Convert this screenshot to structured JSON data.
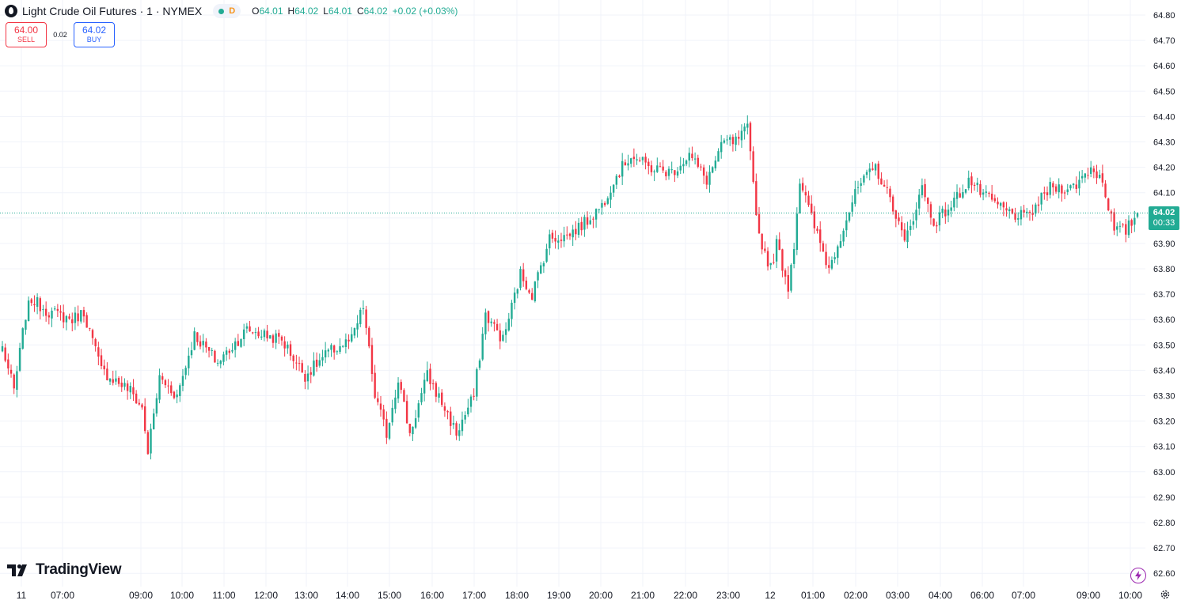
{
  "header": {
    "symbol_title": "Light Crude Oil Futures · 1 · NYMEX",
    "status_letter": "D",
    "ohlc": {
      "o_label": "O",
      "o": "64.01",
      "h_label": "H",
      "h": "64.02",
      "l_label": "L",
      "l": "64.01",
      "c_label": "C",
      "c": "64.02",
      "change": "+0.02 (+0.03%)"
    }
  },
  "trade": {
    "sell_price": "64.00",
    "sell_label": "SELL",
    "spread": "0.02",
    "buy_price": "64.02",
    "buy_label": "BUY"
  },
  "last_price": {
    "value": "64.02",
    "countdown": "00:33"
  },
  "branding": {
    "logo_text": "TradingView"
  },
  "icons": [
    "symbol-logo-icon",
    "market-status-icon",
    "tradingview-logo-icon",
    "lightning-icon",
    "settings-gear-icon"
  ],
  "colors": {
    "up": "#22ab94",
    "down": "#f23645",
    "grid": "#f0f3fa",
    "axis_text": "#131722",
    "last_line": "#22ab94"
  },
  "chart_data": {
    "type": "candlestick",
    "title": "Light Crude Oil Futures · 1 · NYMEX",
    "ylim": [
      62.57,
      64.87
    ],
    "y_ticks": [
      "64.80",
      "64.70",
      "64.60",
      "64.50",
      "64.40",
      "64.30",
      "64.20",
      "64.10",
      "64.00",
      "63.90",
      "63.80",
      "63.70",
      "63.60",
      "63.50",
      "63.40",
      "63.30",
      "63.20",
      "63.10",
      "63.00",
      "62.90",
      "62.80",
      "62.70",
      "62.60"
    ],
    "x_ticks": [
      "11",
      "07:00",
      "09:00",
      "10:00",
      "11:00",
      "12:00",
      "13:00",
      "14:00",
      "15:00",
      "16:00",
      "17:00",
      "18:00",
      "19:00",
      "20:00",
      "21:00",
      "22:00",
      "23:00",
      "12",
      "01:00",
      "02:00",
      "03:00",
      "04:00",
      "06:00",
      "07:00",
      "09:00",
      "10:00"
    ],
    "last_price": 64.02,
    "anchors": [
      {
        "i": 0,
        "v": 63.49
      },
      {
        "i": 4,
        "v": 63.32
      },
      {
        "i": 8,
        "v": 63.62
      },
      {
        "i": 10,
        "v": 63.68
      },
      {
        "i": 16,
        "v": 63.63
      },
      {
        "i": 24,
        "v": 63.6
      },
      {
        "i": 28,
        "v": 63.63
      },
      {
        "i": 34,
        "v": 63.4
      },
      {
        "i": 44,
        "v": 63.32
      },
      {
        "i": 48,
        "v": 63.25
      },
      {
        "i": 50,
        "v": 63.08
      },
      {
        "i": 54,
        "v": 63.37
      },
      {
        "i": 60,
        "v": 63.3
      },
      {
        "i": 66,
        "v": 63.54
      },
      {
        "i": 74,
        "v": 63.43
      },
      {
        "i": 84,
        "v": 63.56
      },
      {
        "i": 96,
        "v": 63.52
      },
      {
        "i": 104,
        "v": 63.38
      },
      {
        "i": 112,
        "v": 63.47
      },
      {
        "i": 120,
        "v": 63.52
      },
      {
        "i": 124,
        "v": 63.65
      },
      {
        "i": 128,
        "v": 63.3
      },
      {
        "i": 132,
        "v": 63.15
      },
      {
        "i": 136,
        "v": 63.37
      },
      {
        "i": 140,
        "v": 63.15
      },
      {
        "i": 146,
        "v": 63.38
      },
      {
        "i": 152,
        "v": 63.25
      },
      {
        "i": 156,
        "v": 63.15
      },
      {
        "i": 162,
        "v": 63.3
      },
      {
        "i": 166,
        "v": 63.62
      },
      {
        "i": 172,
        "v": 63.52
      },
      {
        "i": 178,
        "v": 63.78
      },
      {
        "i": 182,
        "v": 63.7
      },
      {
        "i": 188,
        "v": 63.92
      },
      {
        "i": 194,
        "v": 63.93
      },
      {
        "i": 200,
        "v": 63.98
      },
      {
        "i": 206,
        "v": 64.05
      },
      {
        "i": 210,
        "v": 64.15
      },
      {
        "i": 216,
        "v": 64.25
      },
      {
        "i": 222,
        "v": 64.2
      },
      {
        "i": 230,
        "v": 64.18
      },
      {
        "i": 236,
        "v": 64.25
      },
      {
        "i": 242,
        "v": 64.15
      },
      {
        "i": 248,
        "v": 64.3
      },
      {
        "i": 252,
        "v": 64.3
      },
      {
        "i": 256,
        "v": 64.35
      },
      {
        "i": 260,
        "v": 63.93
      },
      {
        "i": 264,
        "v": 63.8
      },
      {
        "i": 266,
        "v": 63.9
      },
      {
        "i": 270,
        "v": 63.73
      },
      {
        "i": 272,
        "v": 63.9
      },
      {
        "i": 274,
        "v": 64.15
      },
      {
        "i": 278,
        "v": 64.0
      },
      {
        "i": 284,
        "v": 63.8
      },
      {
        "i": 290,
        "v": 64.0
      },
      {
        "i": 294,
        "v": 64.12
      },
      {
        "i": 300,
        "v": 64.2
      },
      {
        "i": 306,
        "v": 64.05
      },
      {
        "i": 310,
        "v": 63.9
      },
      {
        "i": 316,
        "v": 64.12
      },
      {
        "i": 320,
        "v": 63.98
      },
      {
        "i": 326,
        "v": 64.05
      },
      {
        "i": 332,
        "v": 64.15
      },
      {
        "i": 338,
        "v": 64.08
      },
      {
        "i": 346,
        "v": 64.02
      },
      {
        "i": 352,
        "v": 64.0
      },
      {
        "i": 360,
        "v": 64.12
      },
      {
        "i": 368,
        "v": 64.12
      },
      {
        "i": 374,
        "v": 64.2
      },
      {
        "i": 378,
        "v": 64.15
      },
      {
        "i": 382,
        "v": 63.95
      },
      {
        "i": 386,
        "v": 63.95
      },
      {
        "i": 390,
        "v": 64.02
      }
    ]
  }
}
